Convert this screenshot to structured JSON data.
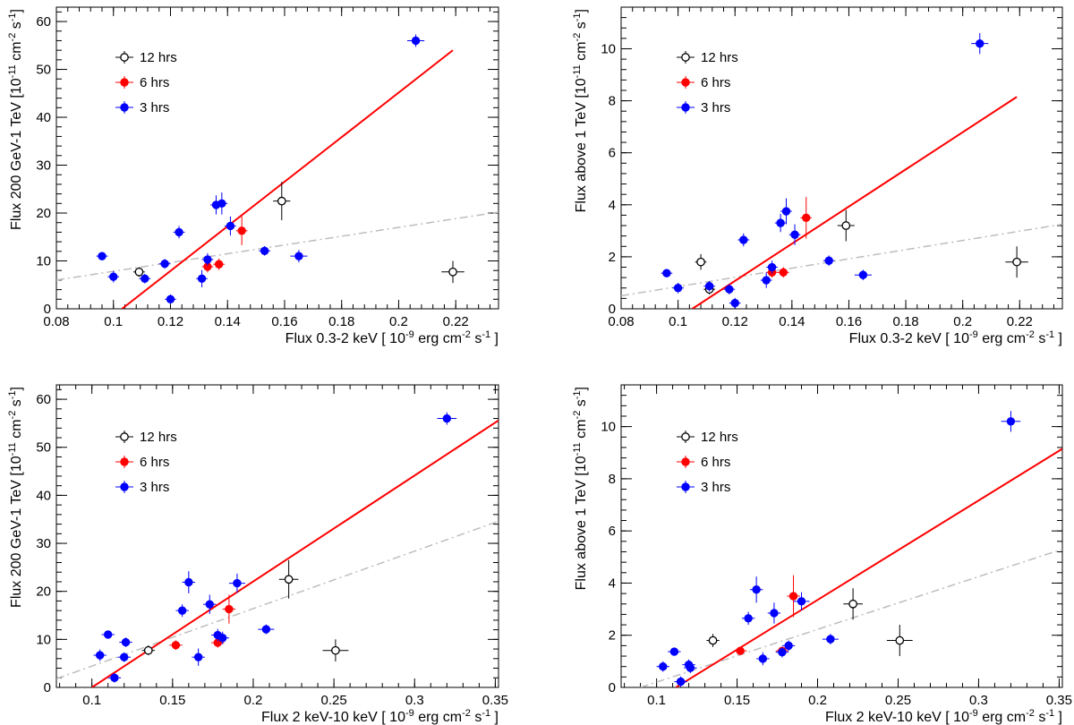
{
  "colors": {
    "s12": "#000000",
    "s6": "#ff0000",
    "s3": "#0000ff",
    "fit": "#ff0000",
    "alt": "#bdbdbd"
  },
  "legend_labels": {
    "s12": "12 hrs",
    "s6": "6 hrs",
    "s3": "3 hrs"
  },
  "chart_data": [
    {
      "id": "tl",
      "type": "scatter",
      "xlabel": "Flux 0.3-2 keV [ 10^-9 erg cm^-2 s^-1 ]",
      "ylabel": "Flux 200 GeV-1 TeV [10^-11 cm^-2 s^-1]",
      "xlim": [
        0.08,
        0.235
      ],
      "ylim": [
        0,
        63
      ],
      "xticks": [
        0.08,
        0.1,
        0.12,
        0.14,
        0.16,
        0.18,
        0.2,
        0.22
      ],
      "xtick_labels": [
        "0.08",
        "0.1",
        "0.12",
        "0.14",
        "0.16",
        "0.18",
        "0.2",
        "0.22"
      ],
      "yticks": [
        0,
        10,
        20,
        30,
        40,
        50,
        60
      ],
      "ytick_labels": [
        "0",
        "10",
        "20",
        "30",
        "40",
        "50",
        "60"
      ],
      "legend_position": "top-left",
      "series": [
        {
          "name": "12 hrs",
          "key": "s12",
          "points": [
            [
              0.109,
              7.7,
              0.002,
              1.0
            ],
            [
              0.159,
              22.5,
              0.003,
              4.0
            ],
            [
              0.219,
              7.7,
              0.004,
              2.3
            ]
          ]
        },
        {
          "name": "6 hrs",
          "key": "s6",
          "points": [
            [
              0.133,
              8.8,
              0.002,
              1.2
            ],
            [
              0.137,
              9.3,
              0.002,
              1.2
            ],
            [
              0.145,
              16.3,
              0.002,
              3.0
            ]
          ]
        },
        {
          "name": "3 hrs",
          "key": "s3",
          "points": [
            [
              0.096,
              11.0,
              0.002,
              0.8
            ],
            [
              0.1,
              6.7,
              0.002,
              1.2
            ],
            [
              0.111,
              6.3,
              0.002,
              1.0
            ],
            [
              0.118,
              9.4,
              0.002,
              1.0
            ],
            [
              0.12,
              2.0,
              0.002,
              1.0
            ],
            [
              0.123,
              16.0,
              0.002,
              1.3
            ],
            [
              0.131,
              6.3,
              0.002,
              1.8
            ],
            [
              0.133,
              10.3,
              0.002,
              1.3
            ],
            [
              0.136,
              21.7,
              0.002,
              2.0
            ],
            [
              0.138,
              22.0,
              0.002,
              2.3
            ],
            [
              0.141,
              17.3,
              0.002,
              2.0
            ],
            [
              0.153,
              12.1,
              0.002,
              1.0
            ],
            [
              0.165,
              11.0,
              0.003,
              1.3
            ],
            [
              0.206,
              56.0,
              0.003,
              1.3
            ]
          ]
        }
      ],
      "fit_line": [
        [
          0.103,
          0
        ],
        [
          0.219,
          54.0
        ]
      ],
      "alt_line": [
        [
          0.08,
          6.0
        ],
        [
          0.235,
          20.2
        ]
      ]
    },
    {
      "id": "tr",
      "type": "scatter",
      "xlabel": "Flux 0.3-2 keV [ 10^-9 erg cm^-2 s^-1 ]",
      "ylabel": "Flux above 1 TeV [10^-11 cm^-2 s^-1]",
      "xlim": [
        0.08,
        0.235
      ],
      "ylim": [
        0,
        11.6
      ],
      "xticks": [
        0.08,
        0.1,
        0.12,
        0.14,
        0.16,
        0.18,
        0.2,
        0.22
      ],
      "xtick_labels": [
        "0.08",
        "0.1",
        "0.12",
        "0.14",
        "0.16",
        "0.18",
        "0.2",
        "0.22"
      ],
      "yticks": [
        0,
        2,
        4,
        6,
        8,
        10
      ],
      "ytick_labels": [
        "0",
        "2",
        "4",
        "6",
        "8",
        "10"
      ],
      "legend_position": "top-left",
      "series": [
        {
          "name": "12 hrs",
          "key": "s12",
          "points": [
            [
              0.108,
              1.8,
              0.002,
              0.3
            ],
            [
              0.111,
              0.75,
              0.002,
              0.2
            ],
            [
              0.159,
              3.2,
              0.003,
              0.6
            ],
            [
              0.219,
              1.8,
              0.004,
              0.6
            ]
          ]
        },
        {
          "name": "6 hrs",
          "key": "s6",
          "points": [
            [
              0.133,
              1.4,
              0.002,
              0.2
            ],
            [
              0.137,
              1.4,
              0.002,
              0.2
            ],
            [
              0.145,
              3.5,
              0.002,
              0.8
            ]
          ]
        },
        {
          "name": "3 hrs",
          "key": "s3",
          "points": [
            [
              0.096,
              1.37,
              0.002,
              0.15
            ],
            [
              0.1,
              0.8,
              0.002,
              0.2
            ],
            [
              0.111,
              0.87,
              0.002,
              0.2
            ],
            [
              0.118,
              0.75,
              0.002,
              0.2
            ],
            [
              0.12,
              0.22,
              0.002,
              0.2
            ],
            [
              0.123,
              2.65,
              0.002,
              0.25
            ],
            [
              0.131,
              1.1,
              0.002,
              0.3
            ],
            [
              0.133,
              1.6,
              0.002,
              0.25
            ],
            [
              0.136,
              3.3,
              0.002,
              0.35
            ],
            [
              0.138,
              3.75,
              0.002,
              0.5
            ],
            [
              0.141,
              2.85,
              0.002,
              0.4
            ],
            [
              0.153,
              1.85,
              0.002,
              0.2
            ],
            [
              0.165,
              1.3,
              0.003,
              0.2
            ],
            [
              0.206,
              10.2,
              0.003,
              0.4
            ]
          ]
        }
      ],
      "fit_line": [
        [
          0.105,
          0
        ],
        [
          0.219,
          8.15
        ]
      ],
      "alt_line": [
        [
          0.08,
          0.5
        ],
        [
          0.235,
          3.25
        ]
      ]
    },
    {
      "id": "bl",
      "type": "scatter",
      "xlabel": "Flux 2 keV-10 keV [ 10^-9 erg cm^-2 s^-1 ]",
      "ylabel": "Flux 200 GeV-1 TeV [10^-11 cm^-2 s^-1]",
      "xlim": [
        0.078,
        0.352
      ],
      "ylim": [
        0,
        63
      ],
      "xticks": [
        0.1,
        0.15,
        0.2,
        0.25,
        0.3,
        0.35
      ],
      "xtick_labels": [
        "0.1",
        "0.15",
        "0.2",
        "0.25",
        "0.3",
        "0.35"
      ],
      "yticks": [
        0,
        10,
        20,
        30,
        40,
        50,
        60
      ],
      "ytick_labels": [
        "0",
        "10",
        "20",
        "30",
        "40",
        "50",
        "60"
      ],
      "legend_position": "top-left",
      "series": [
        {
          "name": "12 hrs",
          "key": "s12",
          "points": [
            [
              0.135,
              7.7,
              0.004,
              1.0
            ],
            [
              0.222,
              22.5,
              0.006,
              4.0
            ],
            [
              0.251,
              7.7,
              0.008,
              2.3
            ]
          ]
        },
        {
          "name": "6 hrs",
          "key": "s6",
          "points": [
            [
              0.152,
              8.8,
              0.004,
              1.0
            ],
            [
              0.178,
              9.3,
              0.004,
              1.0
            ],
            [
              0.185,
              16.3,
              0.004,
              3.0
            ]
          ]
        },
        {
          "name": "3 hrs",
          "key": "s3",
          "points": [
            [
              0.105,
              6.7,
              0.004,
              1.2
            ],
            [
              0.114,
              2.0,
              0.004,
              1.0
            ],
            [
              0.11,
              11.0,
              0.004,
              0.8
            ],
            [
              0.12,
              6.3,
              0.004,
              1.0
            ],
            [
              0.121,
              9.4,
              0.004,
              1.0
            ],
            [
              0.156,
              16.0,
              0.004,
              1.3
            ],
            [
              0.16,
              21.9,
              0.004,
              2.3
            ],
            [
              0.166,
              6.3,
              0.004,
              1.8
            ],
            [
              0.173,
              17.3,
              0.004,
              2.0
            ],
            [
              0.178,
              10.9,
              0.004,
              1.3
            ],
            [
              0.181,
              10.3,
              0.004,
              1.3
            ],
            [
              0.19,
              21.7,
              0.005,
              2.0
            ],
            [
              0.208,
              12.1,
              0.005,
              1.0
            ],
            [
              0.32,
              56.0,
              0.006,
              1.3
            ]
          ]
        }
      ],
      "fit_line": [
        [
          0.1,
          0
        ],
        [
          0.352,
          55.6
        ]
      ],
      "alt_line": [
        [
          0.078,
          1.8
        ],
        [
          0.352,
          34.6
        ]
      ]
    },
    {
      "id": "br",
      "type": "scatter",
      "xlabel": "Flux 2 keV-10 keV [ 10^-9 erg cm^-2 s^-1 ]",
      "ylabel": "Flux above 1 TeV [10^-11 cm^-2 s^-1]",
      "xlim": [
        0.078,
        0.352
      ],
      "ylim": [
        0,
        11.6
      ],
      "xticks": [
        0.1,
        0.15,
        0.2,
        0.25,
        0.3,
        0.35
      ],
      "xtick_labels": [
        "0.1",
        "0.15",
        "0.2",
        "0.25",
        "0.3",
        "0.35"
      ],
      "yticks": [
        0,
        2,
        4,
        6,
        8,
        10
      ],
      "ytick_labels": [
        "0",
        "2",
        "4",
        "6",
        "8",
        "10"
      ],
      "legend_position": "top-left",
      "series": [
        {
          "name": "12 hrs",
          "key": "s12",
          "points": [
            [
              0.135,
              1.8,
              0.004,
              0.25
            ],
            [
              0.222,
              3.2,
              0.006,
              0.6
            ],
            [
              0.251,
              1.8,
              0.008,
              0.6
            ]
          ]
        },
        {
          "name": "6 hrs",
          "key": "s6",
          "points": [
            [
              0.152,
              1.4,
              0.004,
              0.15
            ],
            [
              0.178,
              1.4,
              0.004,
              0.15
            ],
            [
              0.185,
              3.5,
              0.004,
              0.8
            ]
          ]
        },
        {
          "name": "3 hrs",
          "key": "s3",
          "points": [
            [
              0.104,
              0.8,
              0.004,
              0.2
            ],
            [
              0.111,
              1.37,
              0.004,
              0.15
            ],
            [
              0.115,
              0.22,
              0.004,
              0.2
            ],
            [
              0.12,
              0.87,
              0.004,
              0.2
            ],
            [
              0.121,
              0.75,
              0.004,
              0.2
            ],
            [
              0.157,
              2.65,
              0.004,
              0.25
            ],
            [
              0.162,
              3.75,
              0.004,
              0.5
            ],
            [
              0.166,
              1.1,
              0.004,
              0.25
            ],
            [
              0.173,
              2.85,
              0.004,
              0.4
            ],
            [
              0.178,
              1.35,
              0.004,
              0.2
            ],
            [
              0.182,
              1.6,
              0.004,
              0.2
            ],
            [
              0.19,
              3.3,
              0.005,
              0.35
            ],
            [
              0.208,
              1.85,
              0.005,
              0.2
            ],
            [
              0.32,
              10.2,
              0.006,
              0.4
            ]
          ]
        }
      ],
      "fit_line": [
        [
          0.112,
          0
        ],
        [
          0.352,
          9.15
        ]
      ],
      "alt_line": [
        [
          0.09,
          0
        ],
        [
          0.352,
          5.3
        ]
      ]
    }
  ]
}
